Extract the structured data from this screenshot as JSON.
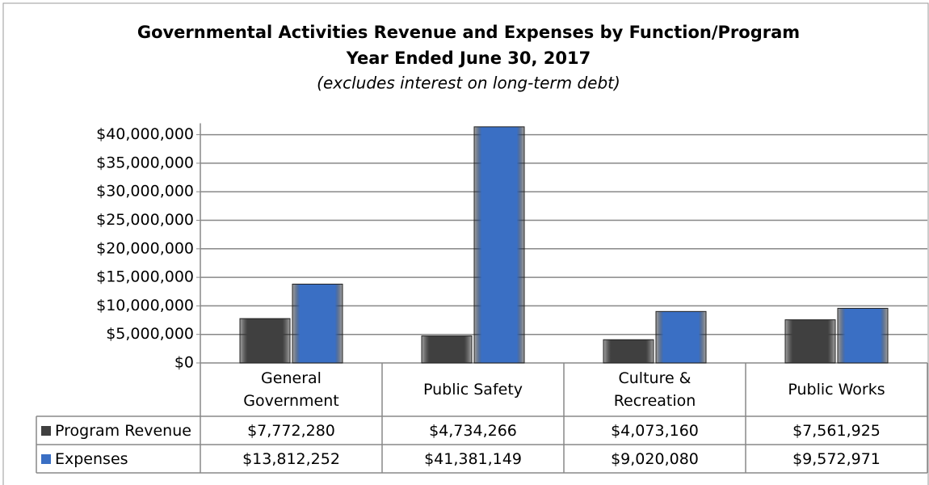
{
  "chart_data": {
    "type": "bar",
    "title": "Governmental Activities Revenue and Expenses by Function/Program",
    "subtitle": "Year Ended June 30, 2017",
    "note": "(excludes interest on long-term debt)",
    "categories": [
      "General Government",
      "Public Safety",
      "Culture & Recreation",
      "Public Works"
    ],
    "series": [
      {
        "name": "Program Revenue",
        "color": "#404040",
        "values": [
          7772280,
          4734266,
          4073160,
          7561925
        ],
        "value_labels": [
          "$7,772,280",
          "$4,734,266",
          "$4,073,160",
          "$7,561,925"
        ]
      },
      {
        "name": "Expenses",
        "color": "#3a6fc4",
        "values": [
          13812252,
          41381149,
          9020080,
          9572971
        ],
        "value_labels": [
          "$13,812,252",
          "$41,381,149",
          "$9,020,080",
          "$9,572,971"
        ]
      }
    ],
    "ylim": [
      0,
      42000000
    ],
    "yticks": [
      {
        "value": 0,
        "label": "$0"
      },
      {
        "value": 5000000,
        "label": "$5,000,000"
      },
      {
        "value": 10000000,
        "label": "$10,000,000"
      },
      {
        "value": 15000000,
        "label": "$15,000,000"
      },
      {
        "value": 20000000,
        "label": "$20,000,000"
      },
      {
        "value": 25000000,
        "label": "$25,000,000"
      },
      {
        "value": 30000000,
        "label": "$30,000,000"
      },
      {
        "value": 35000000,
        "label": "$35,000,000"
      },
      {
        "value": 40000000,
        "label": "$40,000,000"
      }
    ],
    "grid": true
  }
}
